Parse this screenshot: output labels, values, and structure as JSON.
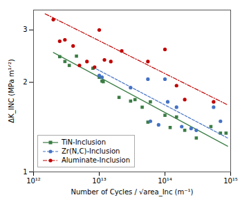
{
  "chart_data": {
    "type": "scatter",
    "xlabel": "Number of Cycles / √area_Inc (m⁻¹)",
    "ylabel": "ΔK_INC (MPa m¹ᐟ²)",
    "log": true,
    "xlim": [
      1000000000000.0,
      1000000000000000.0
    ],
    "xticks": [
      {
        "value": 1000000000000.0,
        "label": "10¹²"
      },
      {
        "value": 10000000000000.0,
        "label": "10¹³"
      },
      {
        "value": 100000000000000.0,
        "label": "10¹⁴"
      },
      {
        "value": 1000000000000000.0,
        "label": "10¹⁵"
      }
    ],
    "ylim": [
      1,
      3.5
    ],
    "yticks": [
      1,
      2,
      3
    ],
    "grid": false,
    "legend": "lower left",
    "series": [
      {
        "name": "TiN-Inclusion",
        "color": "#3a7d44",
        "marker": "square",
        "line_style": "solid",
        "x": [
          2500000000000.0,
          3000000000000.0,
          3500000000000.0,
          4500000000000.0,
          8000000000000.0,
          10000000000000.0,
          11000000000000.0,
          11500000000000.0,
          20000000000000.0,
          30000000000000.0,
          35000000000000.0,
          45000000000000.0,
          55000000000000.0,
          60000000000000.0,
          100000000000000.0,
          120000000000000.0,
          150000000000000.0,
          200000000000000.0,
          300000000000000.0,
          500000000000000.0,
          700000000000000.0,
          850000000000000.0
        ],
        "values": [
          2.44,
          2.35,
          2.28,
          2.45,
          2.23,
          2.08,
          2.02,
          2.01,
          1.78,
          1.73,
          1.75,
          1.65,
          1.47,
          1.72,
          1.55,
          1.41,
          1.53,
          1.38,
          1.3,
          1.42,
          1.35,
          1.35
        ],
        "fit_x": [
          2000000000000.0,
          900000000000000.0
        ],
        "fit_values": [
          2.52,
          1.22
        ]
      },
      {
        "name": "Zr(N,C)-Inclusion",
        "color": "#4472c4",
        "marker": "circle",
        "line_style": "dashed",
        "x": [
          10000000000000.0,
          11000000000000.0,
          30000000000000.0,
          55000000000000.0,
          60000000000000.0,
          80000000000000.0,
          100000000000000.0,
          110000000000000.0,
          150000000000000.0,
          180000000000000.0,
          250000000000000.0,
          300000000000000.0,
          550000000000000.0,
          700000000000000.0
        ],
        "values": [
          2.11,
          2.08,
          1.92,
          2.05,
          1.48,
          1.44,
          2.05,
          1.72,
          1.65,
          1.42,
          1.4,
          1.38,
          1.65,
          1.48
        ],
        "fit_x": [
          8000000000000.0,
          900000000000000.0
        ],
        "fit_values": [
          2.25,
          1.3
        ]
      },
      {
        "name": "Aluminate-Inclusion",
        "color": "#c00000",
        "marker": "circle",
        "line_style": "dashdot",
        "x": [
          2000000000000.0,
          2500000000000.0,
          3000000000000.0,
          4000000000000.0,
          5000000000000.0,
          6500000000000.0,
          8500000000000.0,
          10000000000000.0,
          12000000000000.0,
          15000000000000.0,
          22000000000000.0,
          55000000000000.0,
          100000000000000.0,
          150000000000000.0,
          200000000000000.0,
          550000000000000.0
        ],
        "values": [
          3.25,
          2.75,
          2.78,
          2.65,
          2.28,
          2.35,
          2.25,
          3.0,
          2.38,
          2.35,
          2.55,
          2.35,
          2.58,
          1.95,
          1.75,
          1.72
        ],
        "fit_x": [
          1500000000000.0,
          900000000000000.0
        ],
        "fit_values": [
          3.4,
          1.68
        ]
      }
    ]
  }
}
